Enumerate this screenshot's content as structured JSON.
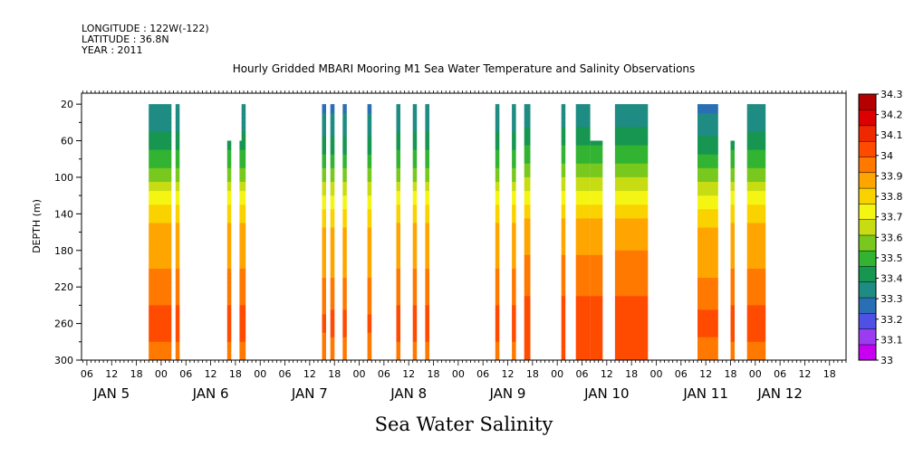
{
  "header": {
    "longitude": "LONGITUDE : 122W(-122)",
    "latitude": "LATITUDE : 36.8N",
    "year": "YEAR : 2011",
    "title": "Hourly Gridded MBARI Mooring M1 Sea Water Temperature and Salinity Observations"
  },
  "chart_data": {
    "type": "heatmap",
    "title": "Hourly Gridded MBARI Mooring M1 Sea Water Temperature and Salinity Observations",
    "xlabel": "Sea Water Salinity",
    "ylabel": "DEPTH (m)",
    "xlim_hours": [
      0,
      183
    ],
    "ylim": [
      300,
      0
    ],
    "y_ticks": [
      20,
      60,
      100,
      140,
      180,
      220,
      260,
      300
    ],
    "x_hour_ticks": [
      {
        "h": 0,
        "label": "06"
      },
      {
        "h": 6,
        "label": "12"
      },
      {
        "h": 12,
        "label": "18"
      },
      {
        "h": 18,
        "label": "00"
      },
      {
        "h": 24,
        "label": "06"
      },
      {
        "h": 30,
        "label": "12"
      },
      {
        "h": 36,
        "label": "18"
      },
      {
        "h": 42,
        "label": "00"
      },
      {
        "h": 48,
        "label": "06"
      },
      {
        "h": 54,
        "label": "12"
      },
      {
        "h": 60,
        "label": "18"
      },
      {
        "h": 66,
        "label": "00"
      },
      {
        "h": 72,
        "label": "06"
      },
      {
        "h": 78,
        "label": "12"
      },
      {
        "h": 84,
        "label": "18"
      },
      {
        "h": 90,
        "label": "00"
      },
      {
        "h": 96,
        "label": "06"
      },
      {
        "h": 102,
        "label": "12"
      },
      {
        "h": 108,
        "label": "18"
      },
      {
        "h": 114,
        "label": "00"
      },
      {
        "h": 120,
        "label": "06"
      },
      {
        "h": 126,
        "label": "12"
      },
      {
        "h": 132,
        "label": "18"
      },
      {
        "h": 138,
        "label": "00"
      },
      {
        "h": 144,
        "label": "06"
      },
      {
        "h": 150,
        "label": "12"
      },
      {
        "h": 156,
        "label": "18"
      },
      {
        "h": 162,
        "label": "00"
      },
      {
        "h": 168,
        "label": "06"
      },
      {
        "h": 174,
        "label": "12"
      },
      {
        "h": 180,
        "label": "18"
      }
    ],
    "day_labels": [
      {
        "h": 6,
        "label": "JAN  5"
      },
      {
        "h": 30,
        "label": "JAN  6"
      },
      {
        "h": 54,
        "label": "JAN  7"
      },
      {
        "h": 78,
        "label": "JAN  8"
      },
      {
        "h": 102,
        "label": "JAN  9"
      },
      {
        "h": 126,
        "label": "JAN 10"
      },
      {
        "h": 150,
        "label": "JAN 11"
      },
      {
        "h": 168,
        "label": "JAN 12"
      }
    ],
    "colorbar": {
      "levels": [
        33,
        33.1,
        33.2,
        33.3,
        33.4,
        33.5,
        33.6,
        33.7,
        33.8,
        33.9,
        34,
        34.1,
        34.2,
        34.3
      ],
      "labels": [
        "33",
        "33.1",
        "33.2",
        "33.3",
        "33.4",
        "33.5",
        "33.6",
        "33.7",
        "33.8",
        "33.9",
        "34",
        "34.1",
        "34.2",
        "34.3"
      ],
      "colors": [
        "#c800f0",
        "#9b3cf0",
        "#5050e6",
        "#2a6fb4",
        "#1e8c82",
        "#169650",
        "#32b432",
        "#78c81e",
        "#c8dc14",
        "#f5f514",
        "#fad200",
        "#ffa500",
        "#ff7800",
        "#ff4b00",
        "#f02800",
        "#dc0000",
        "#b40000"
      ]
    },
    "profile_levels": [
      {
        "depth": 20,
        "value": 33.3
      },
      {
        "depth": 40,
        "value": 33.35
      },
      {
        "depth": 60,
        "value": 33.45
      },
      {
        "depth": 80,
        "value": 33.55
      },
      {
        "depth": 100,
        "value": 33.68
      },
      {
        "depth": 120,
        "value": 33.82
      },
      {
        "depth": 140,
        "value": 33.95
      },
      {
        "depth": 160,
        "value": 34.05
      },
      {
        "depth": 180,
        "value": 34.07
      },
      {
        "depth": 200,
        "value": 34.1
      },
      {
        "depth": 220,
        "value": 34.15
      },
      {
        "depth": 240,
        "value": 34.2
      },
      {
        "depth": 260,
        "value": 34.26
      },
      {
        "depth": 280,
        "value": 34.2
      },
      {
        "depth": 300,
        "value": 34.18
      }
    ],
    "data_blocks": [
      {
        "start": 15,
        "end": 20.5,
        "top_depth": 20,
        "offset": 0
      },
      {
        "start": 21.5,
        "end": 22,
        "top_depth": 20,
        "offset": 0
      },
      {
        "start": 34,
        "end": 34.5,
        "top_depth": 60,
        "offset": 0
      },
      {
        "start": 37,
        "end": 37.5,
        "top_depth": 60,
        "offset": 0
      },
      {
        "start": 37.5,
        "end": 38,
        "top_depth": 20,
        "offset": 0
      },
      {
        "start": 57,
        "end": 57.5,
        "top_depth": 20,
        "offset": -0.03
      },
      {
        "start": 59,
        "end": 60,
        "top_depth": 20,
        "offset": -0.02
      },
      {
        "start": 62,
        "end": 62.5,
        "top_depth": 20,
        "offset": -0.02
      },
      {
        "start": 68,
        "end": 69,
        "top_depth": 20,
        "offset": -0.03
      },
      {
        "start": 75,
        "end": 75.5,
        "top_depth": 20,
        "offset": 0
      },
      {
        "start": 79,
        "end": 79.5,
        "top_depth": 20,
        "offset": 0
      },
      {
        "start": 82,
        "end": 83,
        "top_depth": 20,
        "offset": 0
      },
      {
        "start": 99,
        "end": 99.5,
        "top_depth": 20,
        "offset": 0
      },
      {
        "start": 103,
        "end": 103.5,
        "top_depth": 20,
        "offset": 0
      },
      {
        "start": 106,
        "end": 107.5,
        "top_depth": 20,
        "offset": 0.02
      },
      {
        "start": 115,
        "end": 115.5,
        "top_depth": 20,
        "offset": 0.02
      },
      {
        "start": 118.5,
        "end": 122,
        "top_depth": 20,
        "offset": 0.02
      },
      {
        "start": 122,
        "end": 125,
        "top_depth": 60,
        "offset": 0.02
      },
      {
        "start": 128,
        "end": 136,
        "top_depth": 20,
        "offset": 0.03
      },
      {
        "start": 148,
        "end": 153,
        "top_depth": 20,
        "offset": -0.02
      },
      {
        "start": 156,
        "end": 156.5,
        "top_depth": 60,
        "offset": 0
      },
      {
        "start": 160,
        "end": 164.5,
        "top_depth": 20,
        "offset": 0
      }
    ]
  }
}
